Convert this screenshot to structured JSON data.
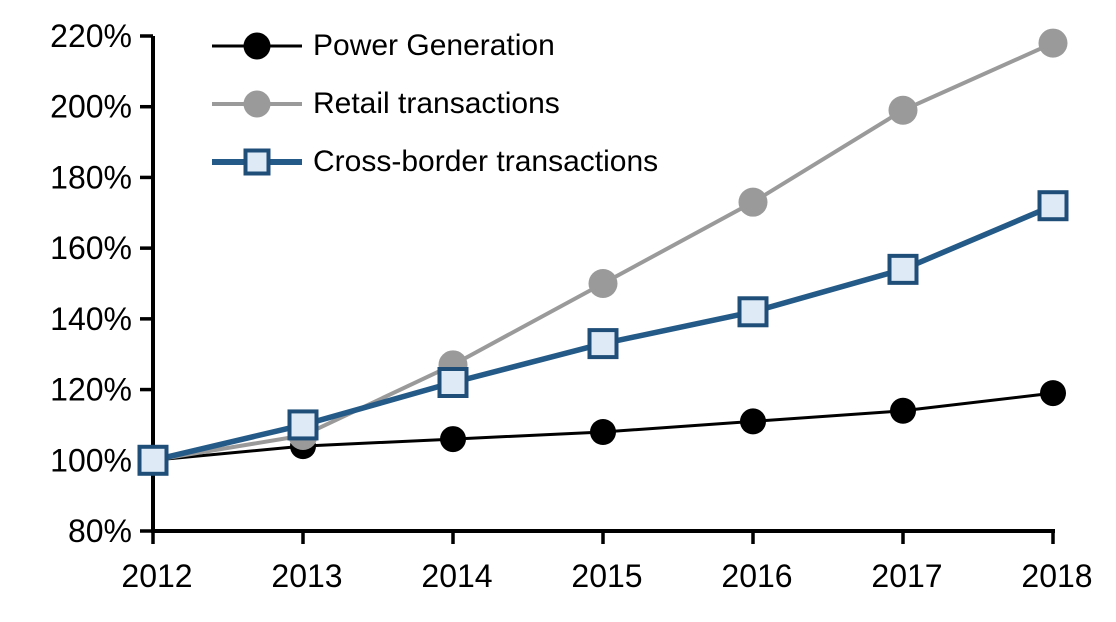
{
  "chart_data": {
    "type": "line",
    "title": "",
    "xlabel": "",
    "ylabel": "",
    "x": [
      "2012",
      "2013",
      "2014",
      "2015",
      "2016",
      "2017",
      "2018"
    ],
    "ylim": [
      80,
      220
    ],
    "ytick_step": 20,
    "ytick_labels": [
      "80%",
      "100%",
      "120%",
      "140%",
      "160%",
      "180%",
      "200%",
      "220%"
    ],
    "grid": false,
    "legend_position": "top-left",
    "axis_color": "#000000",
    "background_color": "#ffffff",
    "series": [
      {
        "name": "Power Generation",
        "marker": "circle",
        "color": "#000000",
        "marker_fill": "#000000",
        "values": [
          100,
          104,
          106,
          108,
          111,
          114,
          119
        ]
      },
      {
        "name": "Retail transactions",
        "marker": "circle",
        "color": "#9a9a9a",
        "marker_fill": "#9a9a9a",
        "values": [
          100,
          107,
          127,
          150,
          173,
          199,
          218
        ]
      },
      {
        "name": "Cross-border transactions",
        "marker": "square",
        "color": "#245a87",
        "marker_fill": "#deebf7",
        "marker_stroke": "#1f4e79",
        "values": [
          100,
          110,
          122,
          133,
          142,
          154,
          172
        ]
      }
    ]
  }
}
